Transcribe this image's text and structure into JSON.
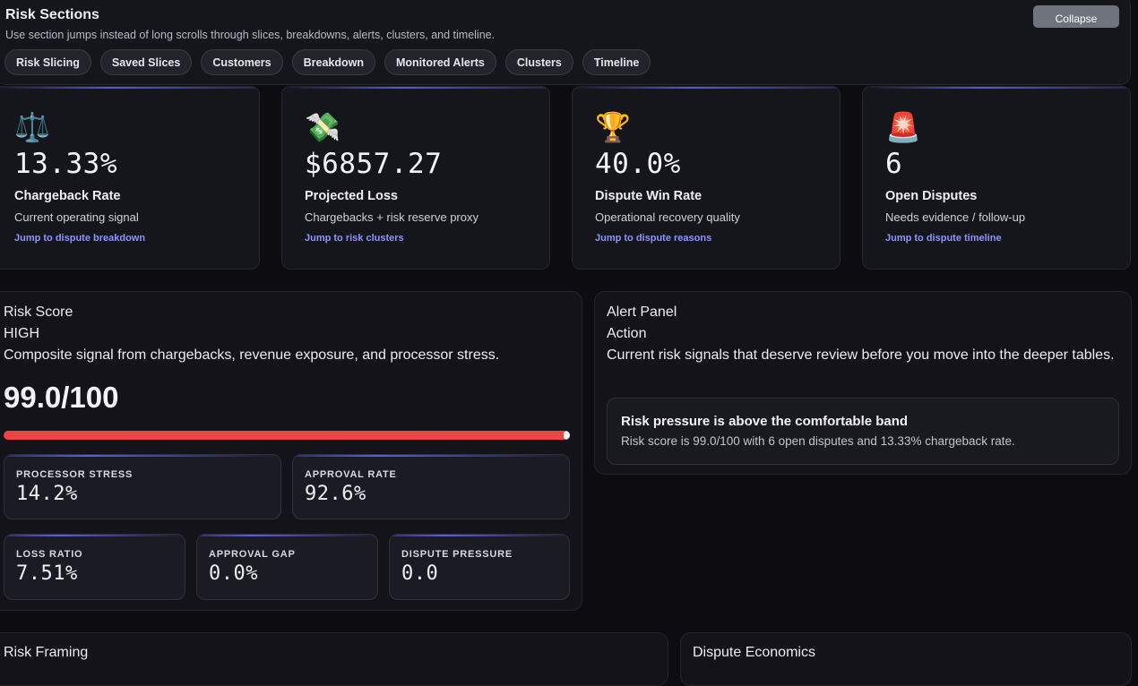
{
  "sections": {
    "title": "Risk Sections",
    "subtitle": "Use section jumps instead of long scrolls through slices, breakdowns, alerts, clusters, and timeline.",
    "collapse_label": "Collapse",
    "chips": [
      "Risk Slicing",
      "Saved Slices",
      "Customers",
      "Breakdown",
      "Monitored Alerts",
      "Clusters",
      "Timeline"
    ]
  },
  "kpis": [
    {
      "icon": "⚖️",
      "icon_name": "scales-icon",
      "value": "13.33%",
      "label": "Chargeback Rate",
      "desc": "Current operating signal",
      "link": "Jump to dispute breakdown"
    },
    {
      "icon": "💸",
      "icon_name": "money-wings-icon",
      "value": "$6857.27",
      "label": "Projected Loss",
      "desc": "Chargebacks + risk reserve proxy",
      "link": "Jump to risk clusters"
    },
    {
      "icon": "🏆",
      "icon_name": "trophy-icon",
      "value": "40.0%",
      "label": "Dispute Win Rate",
      "desc": "Operational recovery quality",
      "link": "Jump to dispute reasons"
    },
    {
      "icon": "🚨",
      "icon_name": "siren-icon",
      "value": "6",
      "label": "Open Disputes",
      "desc": "Needs evidence / follow-up",
      "link": "Jump to dispute timeline"
    }
  ],
  "risk_score": {
    "title": "Risk Score",
    "level": "HIGH",
    "description": "Composite signal from chargebacks, revenue exposure, and processor stress.",
    "score": "99.0/100",
    "score_fraction": 0.99,
    "bar_color": "#ef4444",
    "metrics": [
      {
        "label": "PROCESSOR STRESS",
        "value": "14.2%"
      },
      {
        "label": "APPROVAL RATE",
        "value": "92.6%"
      },
      {
        "label": "LOSS RATIO",
        "value": "7.51%"
      },
      {
        "label": "APPROVAL GAP",
        "value": "0.0%"
      },
      {
        "label": "DISPUTE PRESSURE",
        "value": "0.0"
      }
    ]
  },
  "alert_panel": {
    "title": "Alert Panel",
    "subtitle": "Action",
    "description": "Current risk signals that deserve review before you move into the deeper tables.",
    "alert_title": "Risk pressure is above the comfortable band",
    "alert_body": "Risk score is 99.0/100 with 6 open disputes and 13.33% chargeback rate."
  },
  "bottom": {
    "left_title": "Risk Framing",
    "right_title": "Dispute Economics"
  }
}
